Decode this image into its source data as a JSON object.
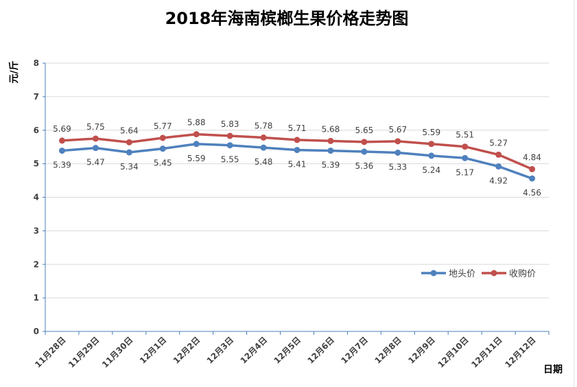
{
  "chart_data": {
    "type": "line",
    "title": "2018年海南槟榔生果价格走势图",
    "ylabel": "元/斤",
    "xlabel": "日期",
    "ylim": [
      0,
      8
    ],
    "yticks": [
      0,
      1,
      2,
      3,
      4,
      5,
      6,
      7,
      8
    ],
    "grid": true,
    "legend_position": "right",
    "categories": [
      "11月28日",
      "11月29日",
      "11月30日",
      "12月1日",
      "12月2日",
      "12月3日",
      "12月4日",
      "12月5日",
      "12月6日",
      "12月7日",
      "12月8日",
      "12月9日",
      "12月10日",
      "12月11日",
      "12月12日"
    ],
    "series": [
      {
        "name": "地头价",
        "color": "#4f81bd",
        "values": [
          5.39,
          5.47,
          5.34,
          5.45,
          5.59,
          5.55,
          5.48,
          5.41,
          5.39,
          5.36,
          5.33,
          5.24,
          5.17,
          4.92,
          4.56
        ]
      },
      {
        "name": "收购价",
        "color": "#c0504d",
        "values": [
          5.69,
          5.75,
          5.64,
          5.77,
          5.88,
          5.83,
          5.78,
          5.71,
          5.68,
          5.65,
          5.67,
          5.59,
          5.51,
          5.27,
          4.84
        ]
      }
    ]
  }
}
